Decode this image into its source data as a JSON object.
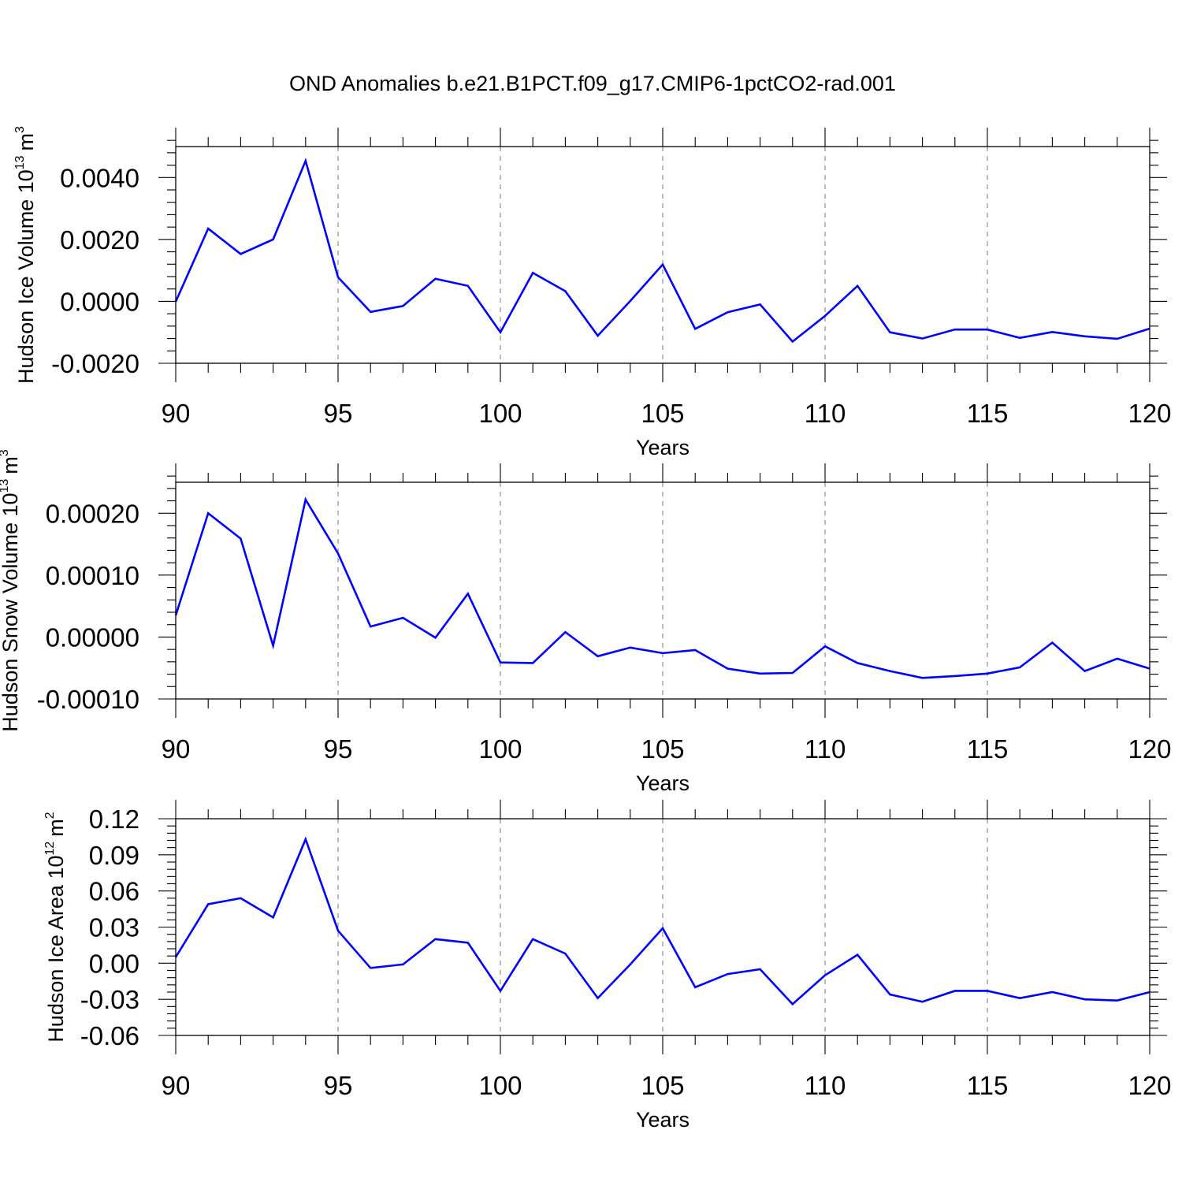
{
  "title": "OND Anomalies b.e21.B1PCT.f09_g17.CMIP6-1pctCO2-rad.001",
  "colors": {
    "line": "#0000ff",
    "axis": "#000000",
    "grid": "#777777"
  },
  "chart_data": [
    {
      "type": "line",
      "title": "OND Anomalies b.e21.B1PCT.f09_g17.CMIP6-1pctCO2-rad.001",
      "xlabel": "Years",
      "ylabel": "Hudson Ice Volume 10",
      "ylabel_exponent": "13",
      "ylabel_unit": "m",
      "ylabel_unit_exponent": "3",
      "xlim": [
        90,
        120
      ],
      "ylim": [
        -0.002,
        0.005
      ],
      "x_ticks": [
        90,
        95,
        100,
        105,
        110,
        115,
        120
      ],
      "x_tick_labels": [
        "90",
        "95",
        "100",
        "105",
        "110",
        "115",
        "120"
      ],
      "y_ticks": [
        -0.002,
        0.0,
        0.002,
        0.004
      ],
      "y_tick_labels": [
        "-0.0020",
        "0.0000",
        "0.0020",
        "0.0040"
      ],
      "y_minor_step": 0.0004,
      "grid": "vertical dashed at major x ticks",
      "series": [
        {
          "name": "Hudson Ice Volume",
          "x": [
            90,
            91,
            92,
            93,
            94,
            95,
            96,
            97,
            98,
            99,
            100,
            101,
            102,
            103,
            104,
            105,
            106,
            107,
            108,
            109,
            110,
            111,
            112,
            113,
            114,
            115,
            116,
            117,
            118,
            119,
            120
          ],
          "values": [
            -1e-05,
            0.00235,
            0.00153,
            0.002,
            0.00454,
            0.00078,
            -0.00034,
            -0.00015,
            0.00073,
            0.0005,
            -0.001,
            0.00092,
            0.00033,
            -0.00111,
            1e-05,
            0.00119,
            -0.00089,
            -0.00035,
            -0.0001,
            -0.0013,
            -0.00047,
            0.0005,
            -0.001,
            -0.0012,
            -0.00091,
            -0.00091,
            -0.00118,
            -0.00099,
            -0.00113,
            -0.00121,
            -0.00088
          ]
        }
      ]
    },
    {
      "type": "line",
      "xlabel": "Years",
      "ylabel": "Hudson Snow Volume 10",
      "ylabel_exponent": "13",
      "ylabel_unit": "m",
      "ylabel_unit_exponent": "3",
      "xlim": [
        90,
        120
      ],
      "ylim": [
        -0.0001,
        0.00025
      ],
      "x_ticks": [
        90,
        95,
        100,
        105,
        110,
        115,
        120
      ],
      "x_tick_labels": [
        "90",
        "95",
        "100",
        "105",
        "110",
        "115",
        "120"
      ],
      "y_ticks": [
        -0.0001,
        0.0,
        0.0001,
        0.0002
      ],
      "y_tick_labels": [
        "-0.00010",
        "0.00000",
        "0.00010",
        "0.00020"
      ],
      "y_minor_step": 2e-05,
      "grid": "vertical dashed at major x ticks",
      "series": [
        {
          "name": "Hudson Snow Volume",
          "x": [
            90,
            91,
            92,
            93,
            94,
            95,
            96,
            97,
            98,
            99,
            100,
            101,
            102,
            103,
            104,
            105,
            106,
            107,
            108,
            109,
            110,
            111,
            112,
            113,
            114,
            115,
            116,
            117,
            118,
            119,
            120
          ],
          "values": [
            3.5e-05,
            0.0002,
            0.000159,
            -1.4e-05,
            0.000222,
            0.000135,
            1.7e-05,
            3.1e-05,
            -1e-06,
            7e-05,
            -4.1e-05,
            -4.2e-05,
            8e-06,
            -3.1e-05,
            -1.7e-05,
            -2.6e-05,
            -2.1e-05,
            -5.1e-05,
            -5.9e-05,
            -5.8e-05,
            -1.5e-05,
            -4.2e-05,
            -5.5e-05,
            -6.6e-05,
            -6.3e-05,
            -5.9e-05,
            -4.9e-05,
            -9e-06,
            -5.5e-05,
            -3.5e-05,
            -5.1e-05
          ]
        }
      ]
    },
    {
      "type": "line",
      "xlabel": "Years",
      "ylabel": "Hudson Ice Area 10",
      "ylabel_exponent": "12",
      "ylabel_unit": "m",
      "ylabel_unit_exponent": "2",
      "xlim": [
        90,
        120
      ],
      "ylim": [
        -0.06,
        0.12
      ],
      "x_ticks": [
        90,
        95,
        100,
        105,
        110,
        115,
        120
      ],
      "x_tick_labels": [
        "90",
        "95",
        "100",
        "105",
        "110",
        "115",
        "120"
      ],
      "y_ticks": [
        -0.06,
        -0.03,
        0.0,
        0.03,
        0.06,
        0.09,
        0.12
      ],
      "y_tick_labels": [
        "-0.06",
        "-0.03",
        "0.00",
        "0.03",
        "0.06",
        "0.09",
        "0.12"
      ],
      "y_minor_step": 0.006,
      "grid": "vertical dashed at major x ticks",
      "series": [
        {
          "name": "Hudson Ice Area",
          "x": [
            90,
            91,
            92,
            93,
            94,
            95,
            96,
            97,
            98,
            99,
            100,
            101,
            102,
            103,
            104,
            105,
            106,
            107,
            108,
            109,
            110,
            111,
            112,
            113,
            114,
            115,
            116,
            117,
            118,
            119,
            120
          ],
          "values": [
            0.005,
            0.049,
            0.054,
            0.038,
            0.103,
            0.027,
            -0.004,
            -0.001,
            0.02,
            0.017,
            -0.023,
            0.02,
            0.008,
            -0.029,
            -0.001,
            0.029,
            -0.02,
            -0.009,
            -0.005,
            -0.034,
            -0.01,
            0.007,
            -0.026,
            -0.032,
            -0.023,
            -0.023,
            -0.029,
            -0.024,
            -0.03,
            -0.031,
            -0.024
          ]
        }
      ]
    }
  ]
}
